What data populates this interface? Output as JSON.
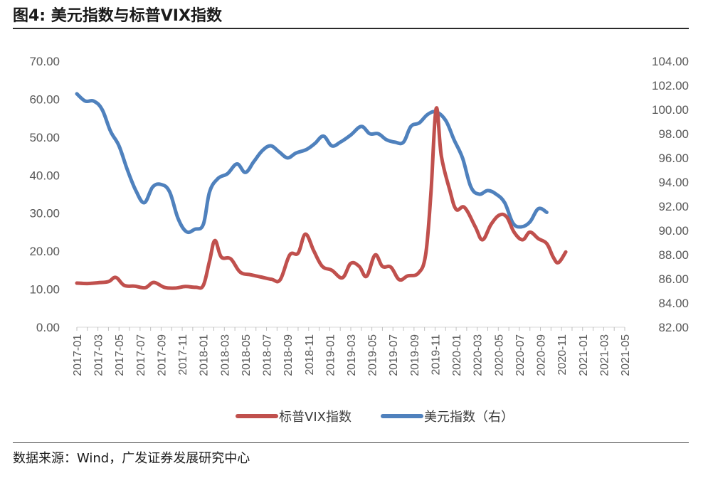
{
  "figure": {
    "title": "图4:  美元指数与标普VIX指数",
    "source": "数据来源：Wind，广发证券发展研究中心"
  },
  "chart_data": {
    "type": "line",
    "title": "美元指数与标普VIX指数",
    "x_tick_labels": [
      "2017-01",
      "2017-03",
      "2017-05",
      "2017-07",
      "2017-09",
      "2017-11",
      "2018-01",
      "2018-03",
      "2018-05",
      "2018-07",
      "2018-09",
      "2018-11",
      "2019-01",
      "2019-03",
      "2019-05",
      "2019-07",
      "2019-09",
      "2019-11",
      "2020-01",
      "2020-03",
      "2020-05",
      "2020-07",
      "2020-09",
      "2020-11",
      "2021-01",
      "2021-03",
      "2021-05"
    ],
    "x_range_months": [
      0,
      52
    ],
    "y_left": {
      "min": 0,
      "max": 70,
      "step": 10,
      "tick_labels": [
        "0.00",
        "10.00",
        "20.00",
        "30.00",
        "40.00",
        "50.00",
        "60.00",
        "70.00"
      ]
    },
    "y_right": {
      "min": 82,
      "max": 104,
      "step": 2,
      "tick_labels": [
        "82.00",
        "84.00",
        "86.00",
        "88.00",
        "90.00",
        "92.00",
        "94.00",
        "96.00",
        "98.00",
        "100.00",
        "102.00",
        "104.00"
      ]
    },
    "legend_position": "bottom-center",
    "series": [
      {
        "name": "标普VIX指数",
        "axis": "left",
        "color": "#c0504d",
        "points": [
          [
            0,
            11.6
          ],
          [
            1,
            11.5
          ],
          [
            2,
            11.7
          ],
          [
            3,
            12.0
          ],
          [
            3.7,
            13.1
          ],
          [
            4.5,
            11.0
          ],
          [
            5.5,
            10.8
          ],
          [
            6.5,
            10.4
          ],
          [
            7.3,
            11.8
          ],
          [
            8.3,
            10.5
          ],
          [
            9.3,
            10.3
          ],
          [
            10.3,
            10.7
          ],
          [
            11.3,
            10.5
          ],
          [
            12,
            11.0
          ],
          [
            12.6,
            17.5
          ],
          [
            13.1,
            22.8
          ],
          [
            13.7,
            18.5
          ],
          [
            14.6,
            18.0
          ],
          [
            15.5,
            14.5
          ],
          [
            16.5,
            13.8
          ],
          [
            17.5,
            13.2
          ],
          [
            18.5,
            12.6
          ],
          [
            19.3,
            12.5
          ],
          [
            20.2,
            19.0
          ],
          [
            21,
            19.5
          ],
          [
            21.7,
            24.5
          ],
          [
            22.5,
            20.0
          ],
          [
            23.3,
            16.0
          ],
          [
            24.2,
            15.0
          ],
          [
            25.2,
            13.0
          ],
          [
            26,
            16.8
          ],
          [
            26.8,
            16.0
          ],
          [
            27.5,
            13.4
          ],
          [
            28.3,
            19.0
          ],
          [
            29,
            16.0
          ],
          [
            29.8,
            15.8
          ],
          [
            30.6,
            12.5
          ],
          [
            31.4,
            13.5
          ],
          [
            32.4,
            14.2
          ],
          [
            33.1,
            19.0
          ],
          [
            33.6,
            35.0
          ],
          [
            34.1,
            57.5
          ],
          [
            34.6,
            45.0
          ],
          [
            35.4,
            36.0
          ],
          [
            36,
            31.0
          ],
          [
            36.8,
            31.5
          ],
          [
            37.8,
            26.5
          ],
          [
            38.5,
            23.0
          ],
          [
            39.3,
            27.0
          ],
          [
            40.1,
            29.5
          ],
          [
            40.8,
            29.0
          ],
          [
            41.5,
            25.0
          ],
          [
            42.3,
            23.0
          ],
          [
            43,
            25.0
          ],
          [
            43.8,
            23.3
          ],
          [
            44.6,
            22.0
          ],
          [
            45.2,
            18.5
          ],
          [
            45.7,
            17.0
          ],
          [
            46.4,
            19.8
          ]
        ]
      },
      {
        "name": "美元指数（右）",
        "axis": "right",
        "color": "#4f81bd",
        "points": [
          [
            0,
            101.3
          ],
          [
            0.8,
            100.7
          ],
          [
            1.6,
            100.7
          ],
          [
            2.4,
            100.0
          ],
          [
            3.2,
            98.2
          ],
          [
            4,
            97.0
          ],
          [
            4.8,
            95.0
          ],
          [
            5.6,
            93.3
          ],
          [
            6.4,
            92.3
          ],
          [
            7.2,
            93.6
          ],
          [
            8,
            93.8
          ],
          [
            8.8,
            93.2
          ],
          [
            9.6,
            91.0
          ],
          [
            10.4,
            89.9
          ],
          [
            11.2,
            90.1
          ],
          [
            12,
            90.5
          ],
          [
            12.6,
            93.2
          ],
          [
            13.4,
            94.3
          ],
          [
            14.3,
            94.7
          ],
          [
            15.2,
            95.5
          ],
          [
            16,
            94.8
          ],
          [
            16.8,
            95.7
          ],
          [
            17.6,
            96.6
          ],
          [
            18.4,
            97.0
          ],
          [
            19.2,
            96.5
          ],
          [
            20,
            96.0
          ],
          [
            20.8,
            96.4
          ],
          [
            21.8,
            96.7
          ],
          [
            22.6,
            97.2
          ],
          [
            23.4,
            97.8
          ],
          [
            24.2,
            97.0
          ],
          [
            25,
            97.3
          ],
          [
            26,
            97.9
          ],
          [
            27,
            98.6
          ],
          [
            27.8,
            98.0
          ],
          [
            28.6,
            98.0
          ],
          [
            29.4,
            97.5
          ],
          [
            30.2,
            97.3
          ],
          [
            31,
            97.3
          ],
          [
            31.7,
            98.6
          ],
          [
            32.5,
            98.9
          ],
          [
            33.3,
            99.6
          ],
          [
            34.1,
            99.8
          ],
          [
            35,
            99.1
          ],
          [
            35.8,
            97.5
          ],
          [
            36.6,
            96.0
          ],
          [
            37.4,
            93.6
          ],
          [
            38.2,
            93.0
          ],
          [
            39,
            93.3
          ],
          [
            39.8,
            93.0
          ],
          [
            40.6,
            92.3
          ],
          [
            41.4,
            90.6
          ],
          [
            42.2,
            90.3
          ],
          [
            43,
            90.7
          ],
          [
            43.8,
            91.8
          ],
          [
            44.6,
            91.5
          ]
        ]
      }
    ]
  }
}
